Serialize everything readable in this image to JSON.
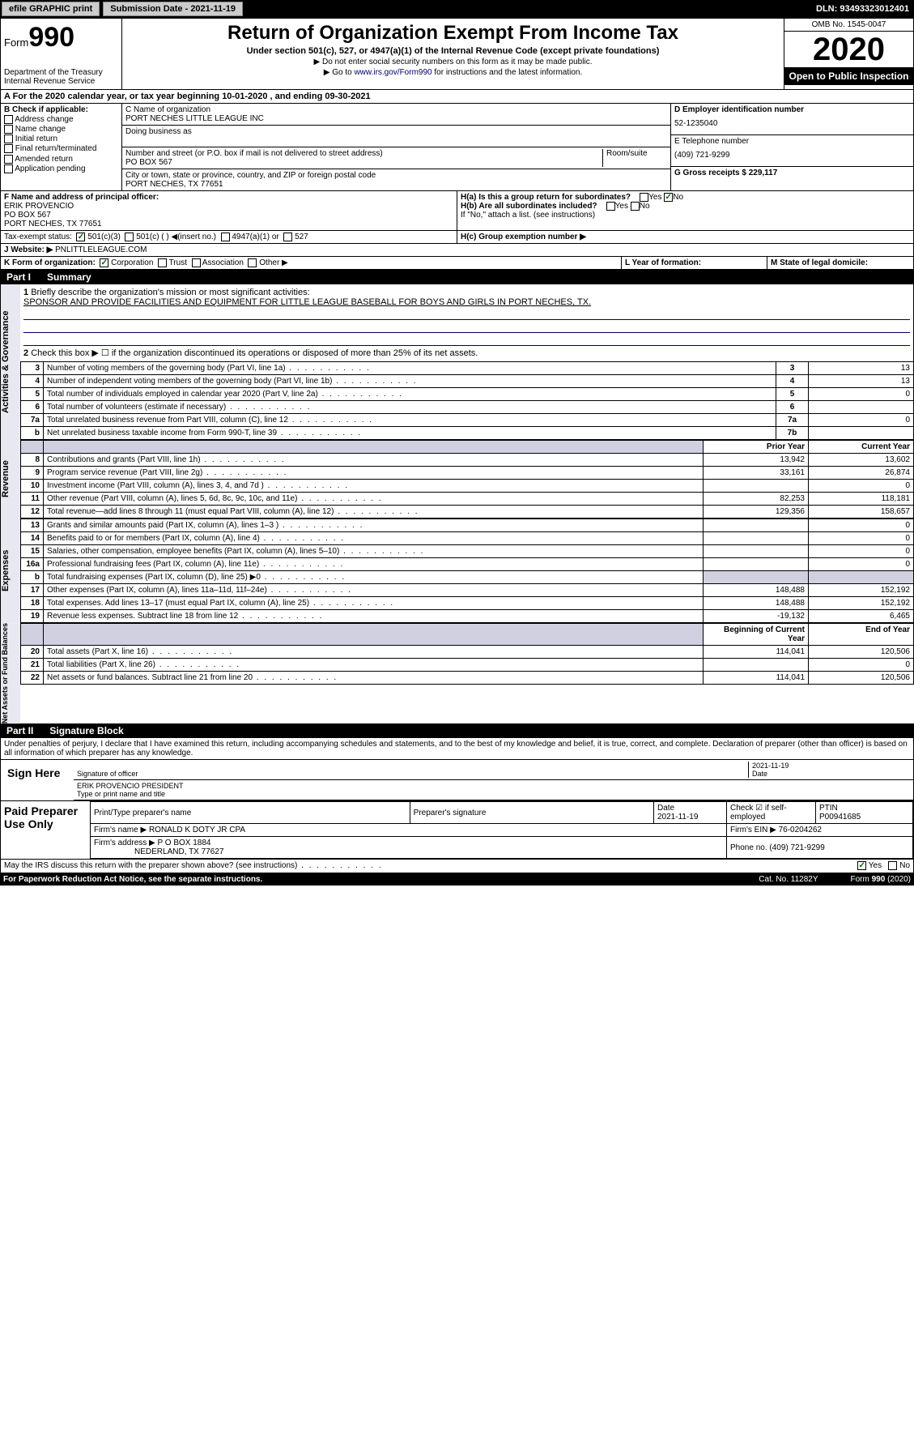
{
  "top": {
    "efile": "efile GRAPHIC print",
    "sub_lbl": "Submission Date - 2021-11-19",
    "dln": "DLN: 93493323012401"
  },
  "hdr": {
    "form": "Form",
    "no": "990",
    "dept": "Department of the Treasury\nInternal Revenue Service",
    "title": "Return of Organization Exempt From Income Tax",
    "sub": "Under section 501(c), 527, or 4947(a)(1) of the Internal Revenue Code (except private foundations)",
    "note1": "▶ Do not enter social security numbers on this form as it may be made public.",
    "note2_pre": "▶ Go to ",
    "note2_link": "www.irs.gov/Form990",
    "note2_post": " for instructions and the latest information.",
    "omb": "OMB No. 1545-0047",
    "year": "2020",
    "open": "Open to Public Inspection"
  },
  "rowA": "A For the 2020 calendar year, or tax year beginning 10-01-2020    , and ending 09-30-2021",
  "colB": {
    "hdr": "B Check if applicable:",
    "opts": [
      "Address change",
      "Name change",
      "Initial return",
      "Final return/terminated",
      "Amended return",
      "Application pending"
    ]
  },
  "colC": {
    "name_lbl": "C Name of organization",
    "name": "PORT NECHES LITTLE LEAGUE INC",
    "dba_lbl": "Doing business as",
    "addr_lbl": "Number and street (or P.O. box if mail is not delivered to street address)",
    "room_lbl": "Room/suite",
    "addr": "PO BOX 567",
    "city_lbl": "City or town, state or province, country, and ZIP or foreign postal code",
    "city": "PORT NECHES, TX  77651"
  },
  "colD": {
    "ein_lbl": "D Employer identification number",
    "ein": "52-1235040",
    "tel_lbl": "E Telephone number",
    "tel": "(409) 721-9299",
    "gross_lbl": "G Gross receipts $ 229,117"
  },
  "rowF": {
    "lbl": "F Name and address of principal officer:",
    "name": "ERIK PROVENCIO",
    "addr1": "PO BOX 567",
    "addr2": "PORT NECHES, TX  77651"
  },
  "rowH": {
    "ha": "H(a)  Is this a group return for subordinates?",
    "hb": "H(b)  Are all subordinates included?",
    "hb2": "If \"No,\" attach a list. (see instructions)",
    "hc": "H(c)  Group exemption number ▶"
  },
  "rowI": {
    "lbl": "Tax-exempt status:",
    "o1": "501(c)(3)",
    "o2": "501(c) (   ) ◀(insert no.)",
    "o3": "4947(a)(1) or",
    "o4": "527"
  },
  "rowJ": {
    "lbl": "J",
    "web_lbl": "Website: ▶",
    "web": "PNLITTLELEAGUE.COM"
  },
  "rowK": {
    "lbl": "K Form of organization:",
    "o1": "Corporation",
    "o2": "Trust",
    "o3": "Association",
    "o4": "Other ▶"
  },
  "rowL": "L Year of formation:",
  "rowM": "M State of legal domicile:",
  "part1": {
    "no": "Part I",
    "title": "Summary"
  },
  "summary": {
    "l1": "Briefly describe the organization's mission or most significant activities:",
    "mission": "SPONSOR AND PROVIDE FACILITIES AND EQUIPMENT FOR LITTLE LEAGUE BASEBALL FOR BOYS AND GIRLS IN PORT NECHES, TX.",
    "l2": "Check this box ▶ ☐  if the organization discontinued its operations or disposed of more than 25% of its net assets.",
    "rows": [
      {
        "n": "3",
        "t": "Number of voting members of the governing body (Part VI, line 1a)",
        "b": "3",
        "v": "13"
      },
      {
        "n": "4",
        "t": "Number of independent voting members of the governing body (Part VI, line 1b)",
        "b": "4",
        "v": "13"
      },
      {
        "n": "5",
        "t": "Total number of individuals employed in calendar year 2020 (Part V, line 2a)",
        "b": "5",
        "v": "0"
      },
      {
        "n": "6",
        "t": "Total number of volunteers (estimate if necessary)",
        "b": "6",
        "v": ""
      },
      {
        "n": "7a",
        "t": "Total unrelated business revenue from Part VIII, column (C), line 12",
        "b": "7a",
        "v": "0"
      },
      {
        "n": "b",
        "t": "Net unrelated business taxable income from Form 990-T, line 39",
        "b": "7b",
        "v": ""
      }
    ],
    "py": "Prior Year",
    "cy": "Current Year",
    "rev": [
      {
        "n": "8",
        "t": "Contributions and grants (Part VIII, line 1h)",
        "p": "13,942",
        "c": "13,602"
      },
      {
        "n": "9",
        "t": "Program service revenue (Part VIII, line 2g)",
        "p": "33,161",
        "c": "26,874"
      },
      {
        "n": "10",
        "t": "Investment income (Part VIII, column (A), lines 3, 4, and 7d )",
        "p": "",
        "c": "0"
      },
      {
        "n": "11",
        "t": "Other revenue (Part VIII, column (A), lines 5, 6d, 8c, 9c, 10c, and 11e)",
        "p": "82,253",
        "c": "118,181"
      },
      {
        "n": "12",
        "t": "Total revenue—add lines 8 through 11 (must equal Part VIII, column (A), line 12)",
        "p": "129,356",
        "c": "158,657"
      }
    ],
    "exp": [
      {
        "n": "13",
        "t": "Grants and similar amounts paid (Part IX, column (A), lines 1–3 )",
        "p": "",
        "c": "0"
      },
      {
        "n": "14",
        "t": "Benefits paid to or for members (Part IX, column (A), line 4)",
        "p": "",
        "c": "0"
      },
      {
        "n": "15",
        "t": "Salaries, other compensation, employee benefits (Part IX, column (A), lines 5–10)",
        "p": "",
        "c": "0"
      },
      {
        "n": "16a",
        "t": "Professional fundraising fees (Part IX, column (A), line 11e)",
        "p": "",
        "c": "0"
      },
      {
        "n": "b",
        "t": "Total fundraising expenses (Part IX, column (D), line 25) ▶0",
        "p": "shade",
        "c": "shade"
      },
      {
        "n": "17",
        "t": "Other expenses (Part IX, column (A), lines 11a–11d, 11f–24e)",
        "p": "148,488",
        "c": "152,192"
      },
      {
        "n": "18",
        "t": "Total expenses. Add lines 13–17 (must equal Part IX, column (A), line 25)",
        "p": "148,488",
        "c": "152,192"
      },
      {
        "n": "19",
        "t": "Revenue less expenses. Subtract line 18 from line 12",
        "p": "-19,132",
        "c": "6,465"
      }
    ],
    "bcy": "Beginning of Current Year",
    "eoy": "End of Year",
    "net": [
      {
        "n": "20",
        "t": "Total assets (Part X, line 16)",
        "p": "114,041",
        "c": "120,506"
      },
      {
        "n": "21",
        "t": "Total liabilities (Part X, line 26)",
        "p": "",
        "c": "0"
      },
      {
        "n": "22",
        "t": "Net assets or fund balances. Subtract line 21 from line 20",
        "p": "114,041",
        "c": "120,506"
      }
    ],
    "side1": "Activities & Governance",
    "side2": "Revenue",
    "side3": "Expenses",
    "side4": "Net Assets or Fund Balances"
  },
  "part2": {
    "no": "Part II",
    "title": "Signature Block"
  },
  "perjury": "Under penalties of perjury, I declare that I have examined this return, including accompanying schedules and statements, and to the best of my knowledge and belief, it is true, correct, and complete. Declaration of preparer (other than officer) is based on all information of which preparer has any knowledge.",
  "sign": {
    "here": "Sign Here",
    "sig_lbl": "Signature of officer",
    "date_lbl": "Date",
    "date": "2021-11-19",
    "name": "ERIK PROVENCIO  PRESIDENT",
    "name_lbl": "Type or print name and title"
  },
  "paid": {
    "title": "Paid Preparer Use Only",
    "h1": "Print/Type preparer's name",
    "h2": "Preparer's signature",
    "h3": "Date",
    "h3v": "2021-11-19",
    "h4": "Check ☑ if self-employed",
    "h5": "PTIN",
    "ptin": "P00941685",
    "firm_lbl": "Firm's name    ▶",
    "firm": "RONALD K DOTY JR CPA",
    "ein_lbl": "Firm's EIN ▶ 76-0204262",
    "addr_lbl": "Firm's address ▶",
    "addr": "P O BOX 1884",
    "addr2": "NEDERLAND, TX  77627",
    "phone_lbl": "Phone no. (409) 721-9299"
  },
  "footer": {
    "q": "May the IRS discuss this return with the preparer shown above? (see instructions)",
    "pra": "For Paperwork Reduction Act Notice, see the separate instructions.",
    "cat": "Cat. No. 11282Y",
    "form": "Form 990 (2020)"
  }
}
